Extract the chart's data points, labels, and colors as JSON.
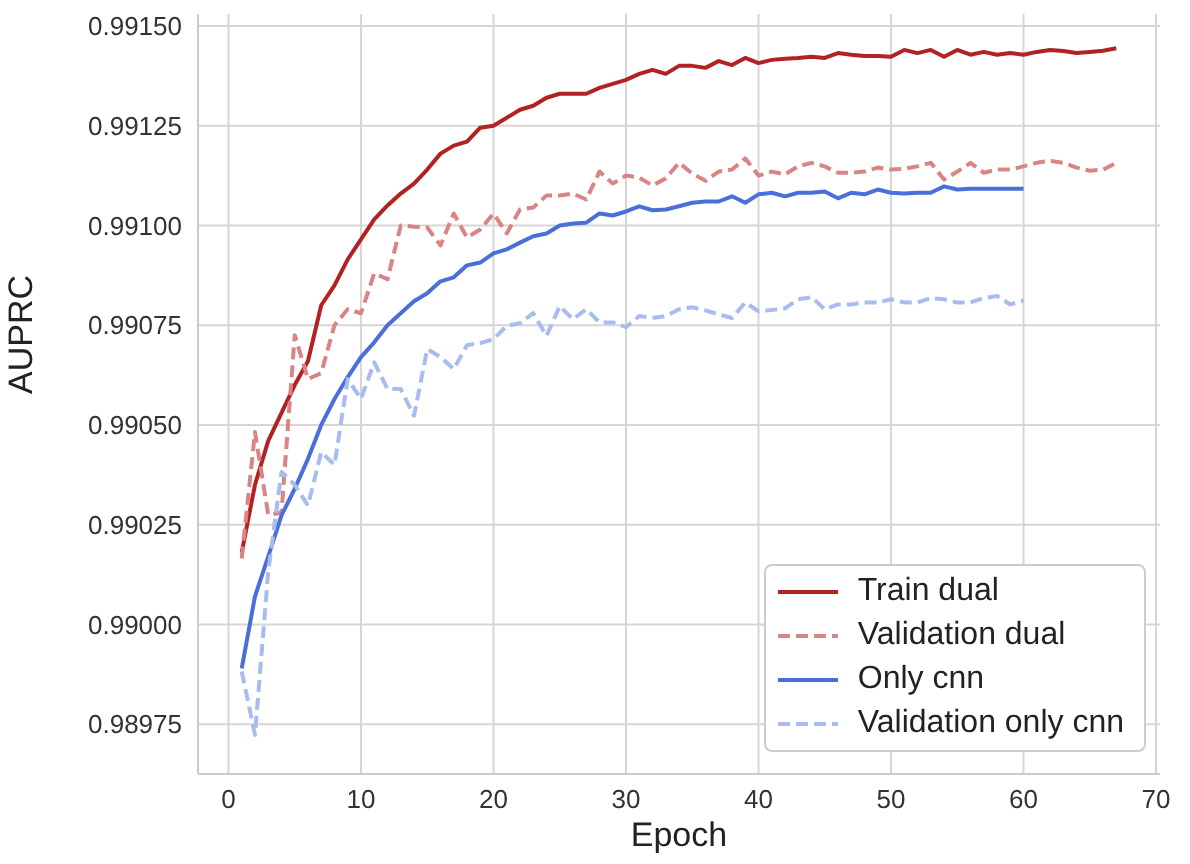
{
  "chart_data": {
    "type": "line",
    "xlabel": "Epoch",
    "ylabel": "AUPRC",
    "xlim": [
      -2.3,
      70.3
    ],
    "ylim": [
      0.989625,
      0.99153
    ],
    "xticks": [
      0,
      10,
      20,
      30,
      40,
      50,
      60,
      70
    ],
    "yticks": [
      {
        "value": 0.98975,
        "label": "0.98975"
      },
      {
        "value": 0.99,
        "label": "0.99000"
      },
      {
        "value": 0.99025,
        "label": "0.99025"
      },
      {
        "value": 0.9905,
        "label": "0.99050"
      },
      {
        "value": 0.99075,
        "label": "0.99075"
      },
      {
        "value": 0.991,
        "label": "0.99100"
      },
      {
        "value": 0.99125,
        "label": "0.99125"
      },
      {
        "value": 0.9915,
        "label": "0.99150"
      }
    ],
    "grid": true,
    "legend": "bottom right",
    "marker": "none",
    "series": [
      {
        "name": "Train dual",
        "color": "#b22222",
        "line_style": "solid",
        "x": [
          1,
          2,
          3,
          4,
          5,
          6,
          7,
          8,
          9,
          10,
          11,
          12,
          13,
          14,
          15,
          16,
          17,
          18,
          19,
          20,
          21,
          22,
          23,
          24,
          25,
          26,
          27,
          28,
          29,
          30,
          31,
          32,
          33,
          34,
          35,
          36,
          37,
          38,
          39,
          40,
          41,
          42,
          43,
          44,
          45,
          46,
          47,
          48,
          49,
          50,
          51,
          52,
          53,
          54,
          55,
          56,
          57,
          58,
          59,
          60,
          61,
          62,
          63,
          64,
          65,
          66,
          67
        ],
        "values": [
          0.99018,
          0.99035,
          0.99046,
          0.99053,
          0.9906,
          0.99066,
          0.9908,
          0.99085,
          0.990915,
          0.990965,
          0.991015,
          0.99105,
          0.99108,
          0.991105,
          0.99114,
          0.99118,
          0.9912,
          0.99121,
          0.991245,
          0.99125,
          0.99127,
          0.99129,
          0.9913,
          0.99132,
          0.99133,
          0.99133,
          0.99133,
          0.991345,
          0.991355,
          0.991365,
          0.99138,
          0.99139,
          0.99138,
          0.9914,
          0.9914,
          0.991395,
          0.991412,
          0.991402,
          0.99142,
          0.991407,
          0.991415,
          0.991418,
          0.99142,
          0.991423,
          0.99142,
          0.991432,
          0.991428,
          0.991425,
          0.991425,
          0.991423,
          0.99144,
          0.991432,
          0.99144,
          0.991423,
          0.99144,
          0.991428,
          0.991435,
          0.991428,
          0.991432,
          0.991428,
          0.991435,
          0.99144,
          0.991437,
          0.991432,
          0.991435,
          0.991438,
          0.991444
        ]
      },
      {
        "name": "Validation dual",
        "color": "#d98585",
        "line_style": "dashed",
        "x": [
          1,
          2,
          3,
          4,
          5,
          6,
          7,
          8,
          9,
          10,
          11,
          12,
          13,
          14,
          15,
          16,
          17,
          18,
          19,
          20,
          21,
          22,
          23,
          24,
          25,
          26,
          27,
          28,
          29,
          30,
          31,
          32,
          33,
          34,
          35,
          36,
          37,
          38,
          39,
          40,
          41,
          42,
          43,
          44,
          45,
          46,
          47,
          48,
          49,
          50,
          51,
          52,
          53,
          54,
          55,
          56,
          57,
          58,
          59,
          60,
          61,
          62,
          63,
          64,
          65,
          66,
          67
        ],
        "values": [
          0.990165,
          0.990482,
          0.990275,
          0.99028,
          0.990725,
          0.990615,
          0.99063,
          0.99075,
          0.99079,
          0.99078,
          0.99088,
          0.990865,
          0.991,
          0.990997,
          0.990995,
          0.99095,
          0.99103,
          0.99097,
          0.99099,
          0.99103,
          0.99098,
          0.99104,
          0.991045,
          0.991075,
          0.991075,
          0.99108,
          0.991065,
          0.991135,
          0.991105,
          0.991125,
          0.99112,
          0.9911,
          0.991118,
          0.991157,
          0.99113,
          0.991112,
          0.991135,
          0.99114,
          0.991168,
          0.991125,
          0.991135,
          0.991128,
          0.991148,
          0.991157,
          0.991148,
          0.991132,
          0.991132,
          0.991135,
          0.991145,
          0.99114,
          0.991142,
          0.991148,
          0.991157,
          0.991115,
          0.991135,
          0.991157,
          0.991132,
          0.99114,
          0.99114,
          0.991148,
          0.991157,
          0.991162,
          0.991157,
          0.991145,
          0.991137,
          0.99114,
          0.991157
        ]
      },
      {
        "name": "Only cnn",
        "color": "#4a6fd8",
        "line_style": "solid",
        "x": [
          1,
          2,
          3,
          4,
          5,
          6,
          7,
          8,
          9,
          10,
          11,
          12,
          13,
          14,
          15,
          16,
          17,
          18,
          19,
          20,
          21,
          22,
          23,
          24,
          25,
          26,
          27,
          28,
          29,
          30,
          31,
          32,
          33,
          34,
          35,
          36,
          37,
          38,
          39,
          40,
          41,
          42,
          43,
          44,
          45,
          46,
          47,
          48,
          49,
          50,
          51,
          52,
          53,
          54,
          55,
          56,
          57,
          58,
          59,
          60
        ],
        "values": [
          0.98989,
          0.99007,
          0.99017,
          0.990273,
          0.99034,
          0.990415,
          0.9905,
          0.990565,
          0.99062,
          0.99067,
          0.990707,
          0.99075,
          0.99078,
          0.99081,
          0.99083,
          0.99086,
          0.99087,
          0.9909,
          0.990907,
          0.99093,
          0.99094,
          0.990957,
          0.990973,
          0.99098,
          0.991,
          0.991005,
          0.991007,
          0.99103,
          0.991025,
          0.991035,
          0.991048,
          0.991038,
          0.99104,
          0.991048,
          0.991057,
          0.99106,
          0.99106,
          0.991073,
          0.991057,
          0.991078,
          0.991082,
          0.991073,
          0.991082,
          0.991082,
          0.991085,
          0.991068,
          0.991082,
          0.991078,
          0.99109,
          0.991082,
          0.99108,
          0.991082,
          0.991082,
          0.991098,
          0.99109,
          0.991092,
          0.991092,
          0.991092,
          0.991092,
          0.991092
        ]
      },
      {
        "name": "Validation only cnn",
        "color": "#a9bcef",
        "line_style": "dashed",
        "x": [
          1,
          2,
          3,
          4,
          5,
          6,
          7,
          8,
          9,
          10,
          11,
          12,
          13,
          14,
          15,
          16,
          17,
          18,
          19,
          20,
          21,
          22,
          23,
          24,
          25,
          26,
          27,
          28,
          29,
          30,
          31,
          32,
          33,
          34,
          35,
          36,
          37,
          38,
          39,
          40,
          41,
          42,
          43,
          44,
          45,
          46,
          47,
          48,
          49,
          50,
          51,
          52,
          53,
          54,
          55,
          56,
          57,
          58,
          59,
          60
        ],
        "values": [
          0.989882,
          0.989723,
          0.990132,
          0.990382,
          0.99035,
          0.990298,
          0.990432,
          0.9904,
          0.990615,
          0.990565,
          0.990657,
          0.99059,
          0.99059,
          0.990523,
          0.99069,
          0.99067,
          0.99064,
          0.9907,
          0.990705,
          0.990715,
          0.990748,
          0.990755,
          0.99078,
          0.990723,
          0.990798,
          0.990765,
          0.99079,
          0.990757,
          0.990757,
          0.990745,
          0.990773,
          0.990768,
          0.990773,
          0.99079,
          0.990795,
          0.990787,
          0.990777,
          0.990768,
          0.990807,
          0.990785,
          0.990788,
          0.990792,
          0.990815,
          0.99082,
          0.99079,
          0.990802,
          0.990802,
          0.990807,
          0.990807,
          0.990815,
          0.990807,
          0.990807,
          0.990818,
          0.990815,
          0.990807,
          0.990807,
          0.990818,
          0.990823,
          0.990802,
          0.990812
        ]
      }
    ]
  }
}
